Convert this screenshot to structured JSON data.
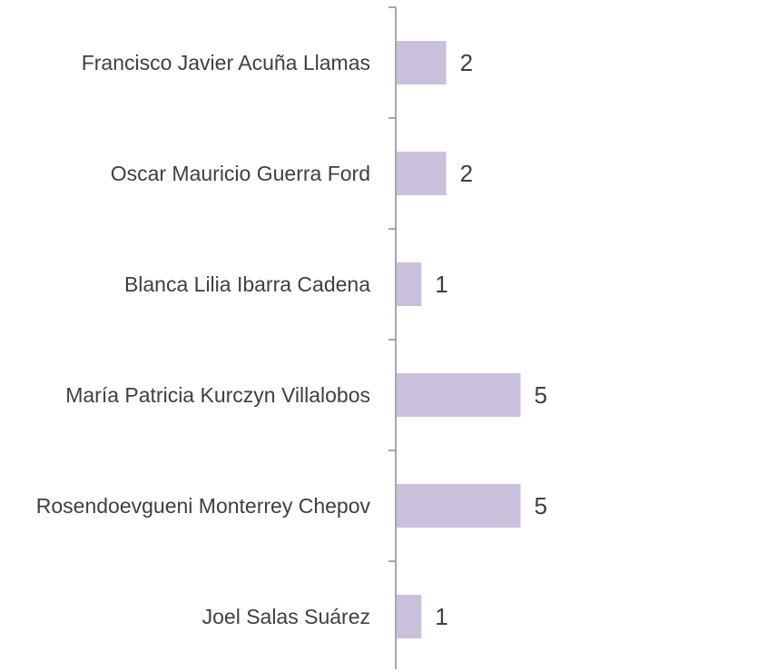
{
  "chart_data": {
    "type": "bar",
    "orientation": "horizontal",
    "categories": [
      "Francisco Javier Acuña Llamas",
      "Oscar Mauricio Guerra Ford",
      "Blanca Lilia Ibarra Cadena",
      "María Patricia Kurczyn Villalobos",
      "Rosendoevgueni Monterrey Chepov",
      "Joel Salas Suárez"
    ],
    "values": [
      2,
      2,
      1,
      5,
      5,
      1
    ],
    "color": "#cbc0dc"
  }
}
